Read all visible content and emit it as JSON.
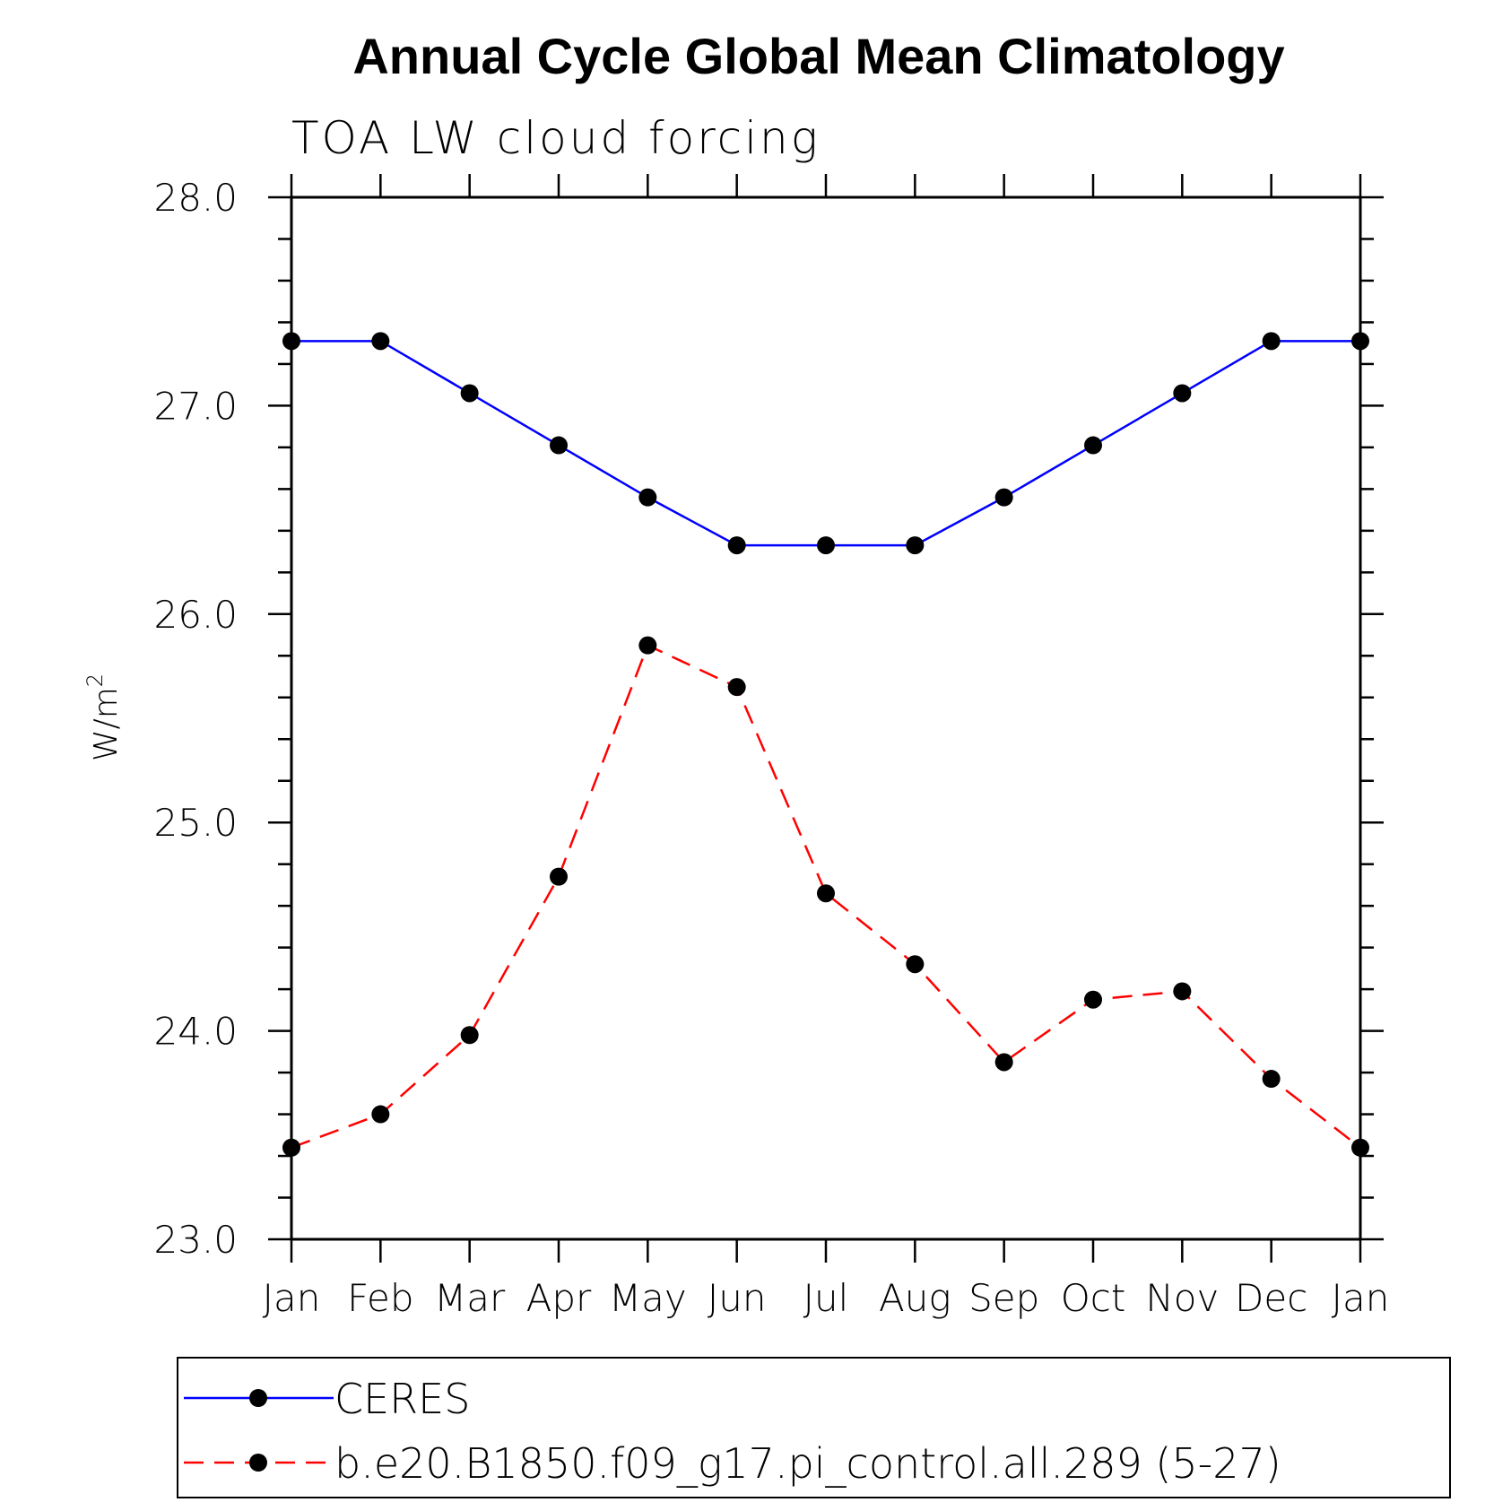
{
  "chart_data": {
    "type": "line",
    "title": "Annual Cycle Global Mean Climatology",
    "subtitle": "TOA LW cloud forcing",
    "ylabel": "W/m",
    "ylabel_superscript": "2",
    "ylim": [
      23.0,
      28.0
    ],
    "yticks": [
      "23.0",
      "24.0",
      "25.0",
      "26.0",
      "27.0",
      "28.0"
    ],
    "categories": [
      "Jan",
      "Feb",
      "Mar",
      "Apr",
      "May",
      "Jun",
      "Jul",
      "Aug",
      "Sep",
      "Oct",
      "Nov",
      "Dec",
      "Jan"
    ],
    "grid": false,
    "legend_position": "bottom",
    "series": [
      {
        "name": "CERES",
        "color": "#0000ff",
        "dashed": false,
        "values": [
          27.31,
          27.31,
          27.06,
          26.81,
          26.56,
          26.33,
          26.33,
          26.33,
          26.56,
          26.81,
          27.06,
          27.31,
          27.31
        ]
      },
      {
        "name": "b.e20.B1850.f09_g17.pi_control.all.289 (5-27)",
        "color": "#ff0000",
        "dashed": true,
        "values": [
          23.44,
          23.6,
          23.98,
          24.74,
          25.85,
          25.65,
          24.66,
          24.32,
          23.85,
          24.15,
          24.19,
          23.77,
          23.44
        ]
      }
    ]
  }
}
